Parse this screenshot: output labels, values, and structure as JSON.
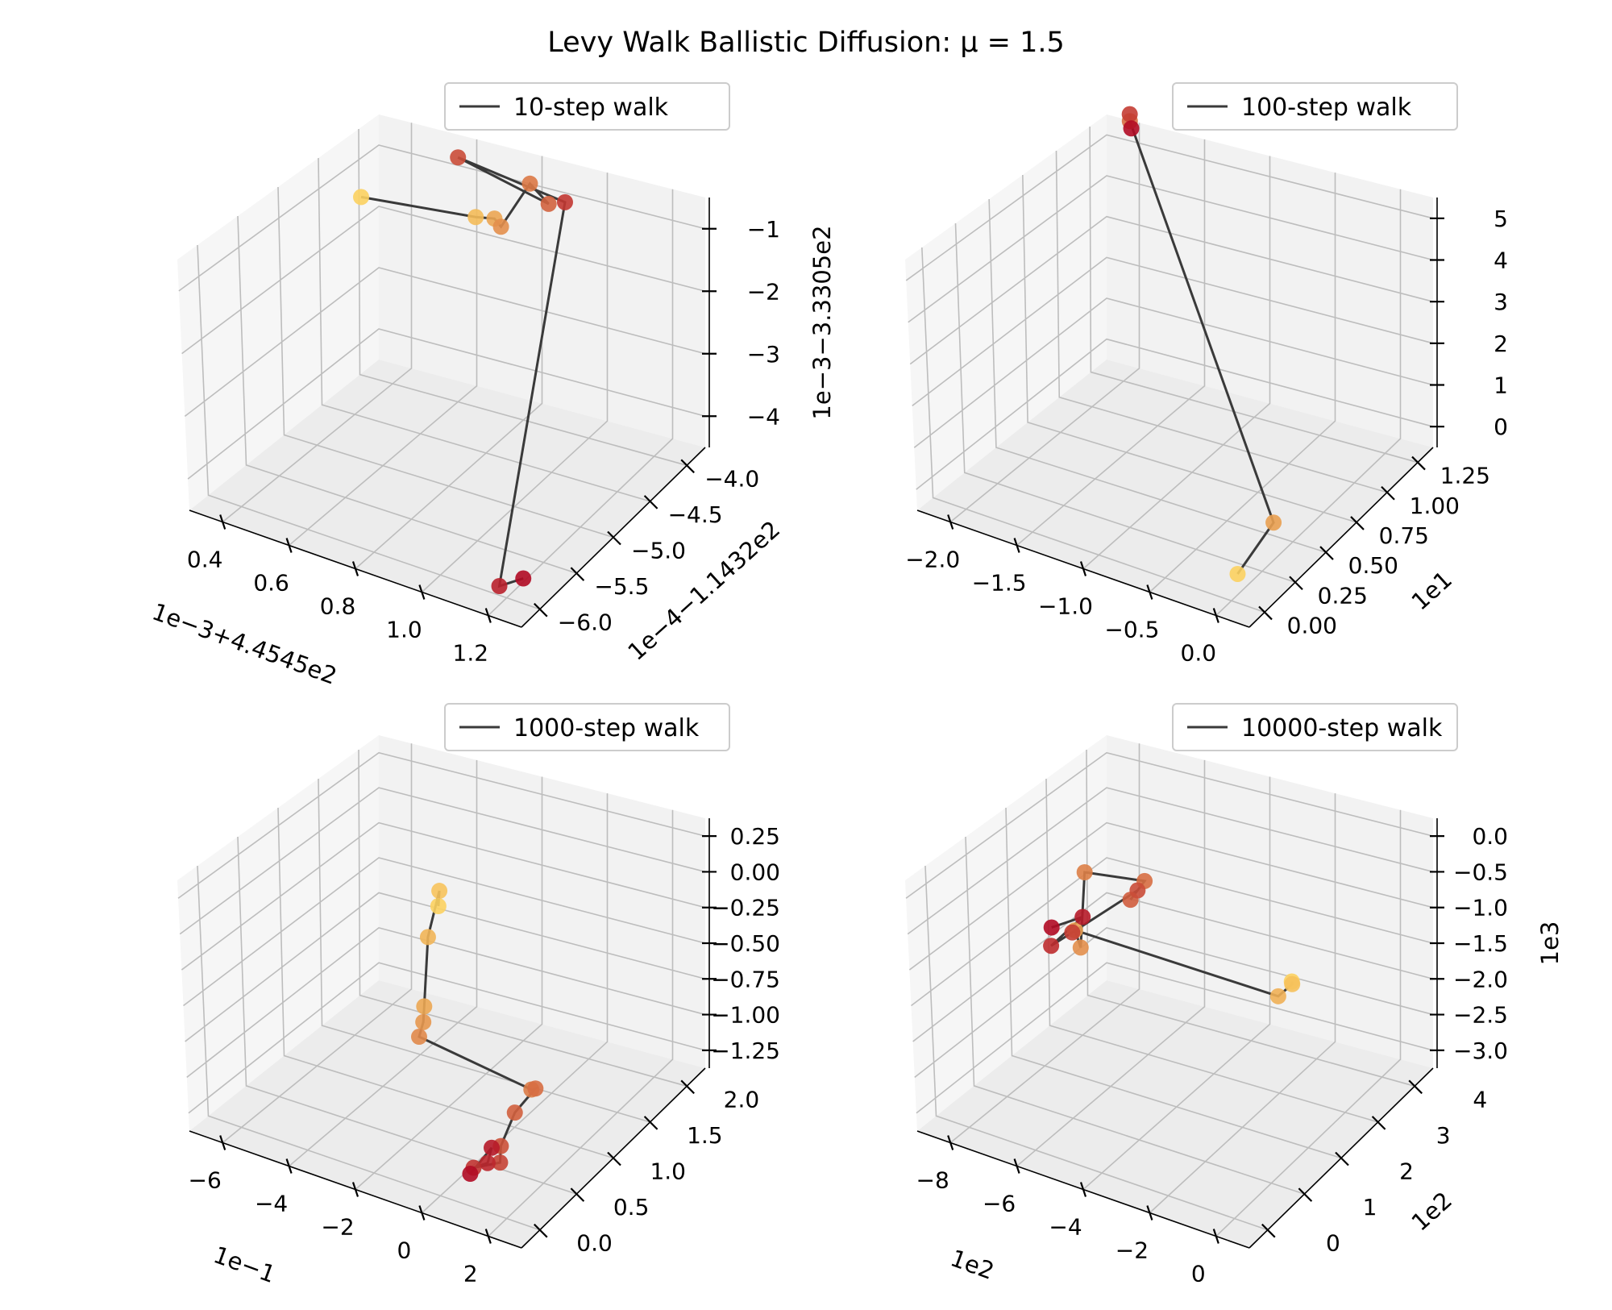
{
  "figure": {
    "suptitle": "Levy Walk Ballistic Diffusion: μ = 1.5",
    "colors": {
      "start": "#fcd160",
      "end": "#b10b25",
      "line": "#3a3a3a"
    }
  },
  "chart_data": [
    {
      "type": "scatter3d",
      "legend": "10-step walk",
      "x_offset_label": "1e−3+4.4545e2",
      "y_offset_label": "1e−4−1.1432e2",
      "z_offset_label": "1e−3−3.3305e2",
      "x_ticks": [
        "0.4",
        "0.6",
        "0.8",
        "1.0",
        "1.2"
      ],
      "y_ticks": [
        "−6.0",
        "−5.5",
        "−5.0",
        "−4.5",
        "−4.0"
      ],
      "z_ticks": [
        "−4",
        "−3",
        "−2",
        "−1"
      ],
      "points": [
        {
          "step": 0,
          "x": 0.35,
          "y": -4.2,
          "z": -1.4
        },
        {
          "step": 1,
          "x": 0.7,
          "y": -4.2,
          "z": -1.2
        },
        {
          "step": 2,
          "x": 0.78,
          "y": -4.3,
          "z": -1.0
        },
        {
          "step": 3,
          "x": 0.8,
          "y": -4.3,
          "z": -1.1
        },
        {
          "step": 4,
          "x": 0.82,
          "y": -4.0,
          "z": -0.7
        },
        {
          "step": 5,
          "x": 0.9,
          "y": -4.1,
          "z": -0.8
        },
        {
          "step": 6,
          "x": 0.6,
          "y": -4.0,
          "z": -0.6
        },
        {
          "step": 7,
          "x": 0.95,
          "y": -4.1,
          "z": -0.7
        },
        {
          "step": 8,
          "x": 1.2,
          "y": -6.1,
          "z": -4.2
        },
        {
          "step": 9,
          "x": 1.25,
          "y": -6.0,
          "z": -4.1
        }
      ]
    },
    {
      "type": "scatter3d",
      "legend": "100-step walk",
      "x_offset_label": "",
      "y_offset_label": "1e1",
      "z_offset_label": "",
      "x_ticks": [
        "−2.0",
        "−1.5",
        "−1.0",
        "−0.5",
        "0.0"
      ],
      "y_ticks": [
        "0.00",
        "0.25",
        "0.50",
        "0.75",
        "1.00",
        "1.25"
      ],
      "z_ticks": [
        "0",
        "1",
        "2",
        "3",
        "4",
        "5"
      ],
      "points": [
        {
          "step": 0,
          "x": 0.0,
          "y": 0.05,
          "z": 0.0
        },
        {
          "step": 1,
          "x": -0.1,
          "y": 0.45,
          "z": 0.0
        },
        {
          "step": 2,
          "x": -2.0,
          "y": 1.3,
          "z": 5.6
        },
        {
          "step": 3,
          "x": -2.02,
          "y": 1.32,
          "z": 5.7
        },
        {
          "step": 4,
          "x": -1.97,
          "y": 1.28,
          "z": 5.5
        }
      ]
    },
    {
      "type": "scatter3d",
      "legend": "1000-step walk",
      "x_offset_label": "1e−1",
      "y_offset_label": "",
      "z_offset_label": "",
      "x_ticks": [
        "−6",
        "−4",
        "−2",
        "0",
        "2"
      ],
      "y_ticks": [
        "0.0",
        "0.5",
        "1.0",
        "1.5",
        "2.0"
      ],
      "z_ticks": [
        "−1.25",
        "−1.00",
        "−0.75",
        "−0.50",
        "−0.25",
        "0.00",
        "0.25"
      ],
      "points": [
        {
          "step": 0,
          "x": -4.6,
          "y": 2.0,
          "z": -0.6
        },
        {
          "step": 1,
          "x": -4.8,
          "y": 2.1,
          "z": -0.55
        },
        {
          "step": 2,
          "x": -4.0,
          "y": 1.6,
          "z": -0.6
        },
        {
          "step": 3,
          "x": -3.2,
          "y": 1.2,
          "z": -0.85
        },
        {
          "step": 4,
          "x": -3.0,
          "y": 1.1,
          "z": -0.9
        },
        {
          "step": 5,
          "x": -2.9,
          "y": 1.0,
          "z": -0.95
        },
        {
          "step": 6,
          "x": 2.3,
          "y": 0.2,
          "z": -0.55
        },
        {
          "step": 7,
          "x": 2.2,
          "y": 0.3,
          "z": -0.6
        },
        {
          "step": 8,
          "x": 1.8,
          "y": 0.2,
          "z": -0.75
        },
        {
          "step": 9,
          "x": 1.6,
          "y": 0.1,
          "z": -0.95
        },
        {
          "step": 10,
          "x": 1.8,
          "y": 0.0,
          "z": -1.0
        },
        {
          "step": 11,
          "x": 1.0,
          "y": 0.0,
          "z": -1.1
        },
        {
          "step": 12,
          "x": 1.2,
          "y": 0.1,
          "z": -1.1
        },
        {
          "step": 13,
          "x": 1.1,
          "y": 0.2,
          "z": -1.05
        },
        {
          "step": 14,
          "x": 0.9,
          "y": 0.0,
          "z": -1.15
        }
      ]
    },
    {
      "type": "scatter3d",
      "legend": "10000-step walk",
      "x_offset_label": "1e2",
      "y_offset_label": "1e2",
      "z_offset_label": "1e3",
      "x_ticks": [
        "−8",
        "−6",
        "−4",
        "−2",
        "0"
      ],
      "y_ticks": [
        "0",
        "1",
        "2",
        "3",
        "4"
      ],
      "z_ticks": [
        "−3.0",
        "−2.5",
        "−2.0",
        "−1.5",
        "−1.0",
        "−0.5",
        "0.0"
      ],
      "points": [
        {
          "step": 0,
          "x": -0.5,
          "y": 2.0,
          "z": -1.0
        },
        {
          "step": 1,
          "x": -0.6,
          "y": 2.1,
          "z": -1.1
        },
        {
          "step": 2,
          "x": -0.8,
          "y": 1.9,
          "z": -1.2
        },
        {
          "step": 3,
          "x": -8.0,
          "y": 2.8,
          "z": -1.7
        },
        {
          "step": 4,
          "x": -7.6,
          "y": 2.6,
          "z": -1.8
        },
        {
          "step": 5,
          "x": -8.4,
          "y": 3.4,
          "z": -1.2
        },
        {
          "step": 6,
          "x": -6.8,
          "y": 3.6,
          "z": -1.2
        },
        {
          "step": 7,
          "x": -7.0,
          "y": 3.4,
          "z": -1.4
        },
        {
          "step": 8,
          "x": -6.9,
          "y": 3.5,
          "z": -1.3
        },
        {
          "step": 9,
          "x": -8.2,
          "y": 2.9,
          "z": -1.8
        },
        {
          "step": 10,
          "x": -8.5,
          "y": 2.6,
          "z": -1.9
        },
        {
          "step": 11,
          "x": -8.0,
          "y": 3.0,
          "z": -1.6
        },
        {
          "step": 12,
          "x": -8.6,
          "y": 2.7,
          "z": -1.7
        }
      ]
    }
  ]
}
